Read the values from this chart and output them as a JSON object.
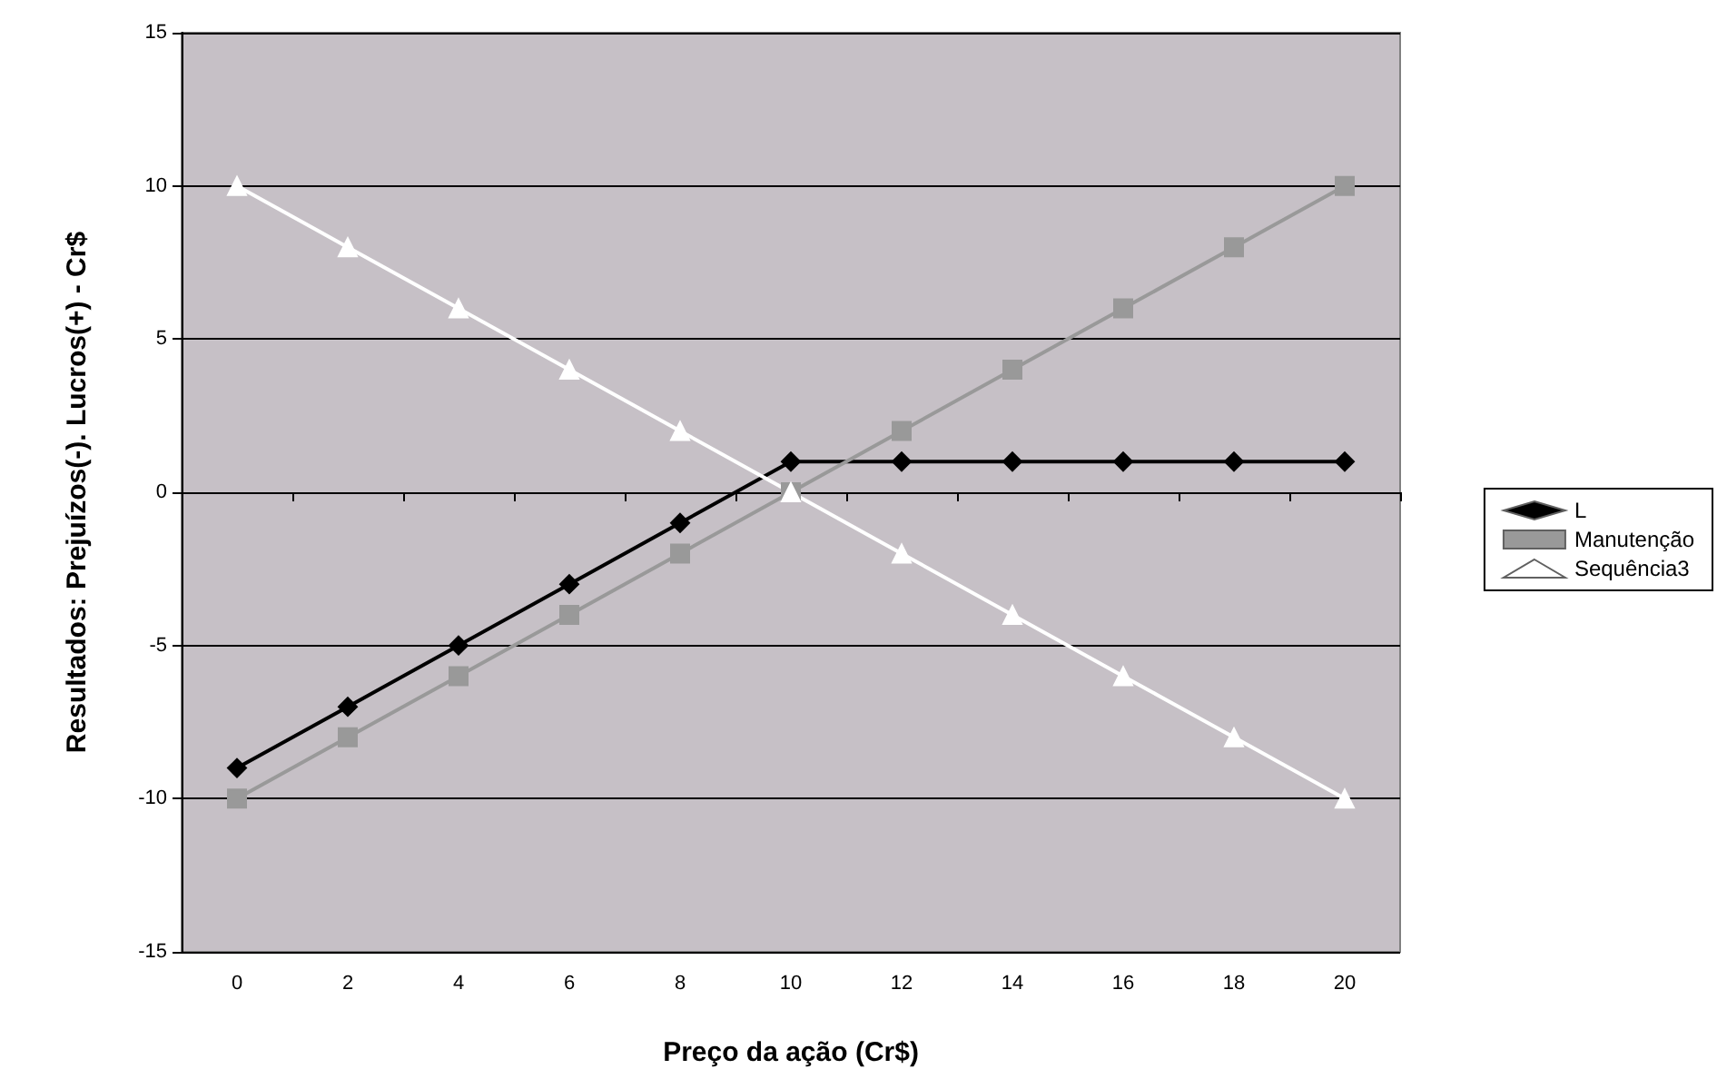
{
  "chart_data": {
    "type": "line",
    "xlabel": "Preço da ação (Cr$)",
    "ylabel": "Resultados: Prejuízos(-). Lucros(+) - Cr$",
    "categories": [
      "0",
      "2",
      "4",
      "6",
      "8",
      "10",
      "12",
      "14",
      "16",
      "18",
      "20"
    ],
    "series": [
      {
        "name": "L",
        "color": "#000000",
        "marker": "diamond",
        "values": [
          -9,
          -7,
          -5,
          -3,
          -1,
          1,
          1,
          1,
          1,
          1,
          1
        ]
      },
      {
        "name": "Manutenção",
        "color": "#999999",
        "marker": "square",
        "values": [
          -10,
          -8,
          -6,
          -4,
          -2,
          0,
          2,
          4,
          6,
          8,
          10
        ]
      },
      {
        "name": "Sequência3",
        "color": "#ffffff",
        "marker": "triangle",
        "values": [
          10,
          8,
          6,
          4,
          2,
          0,
          -2,
          -4,
          -6,
          -8,
          -10
        ]
      }
    ],
    "ylim": [
      -15,
      15
    ],
    "yticks": [
      -15,
      -10,
      -5,
      0,
      5,
      10,
      15
    ],
    "grid": "y",
    "legend": "right"
  }
}
